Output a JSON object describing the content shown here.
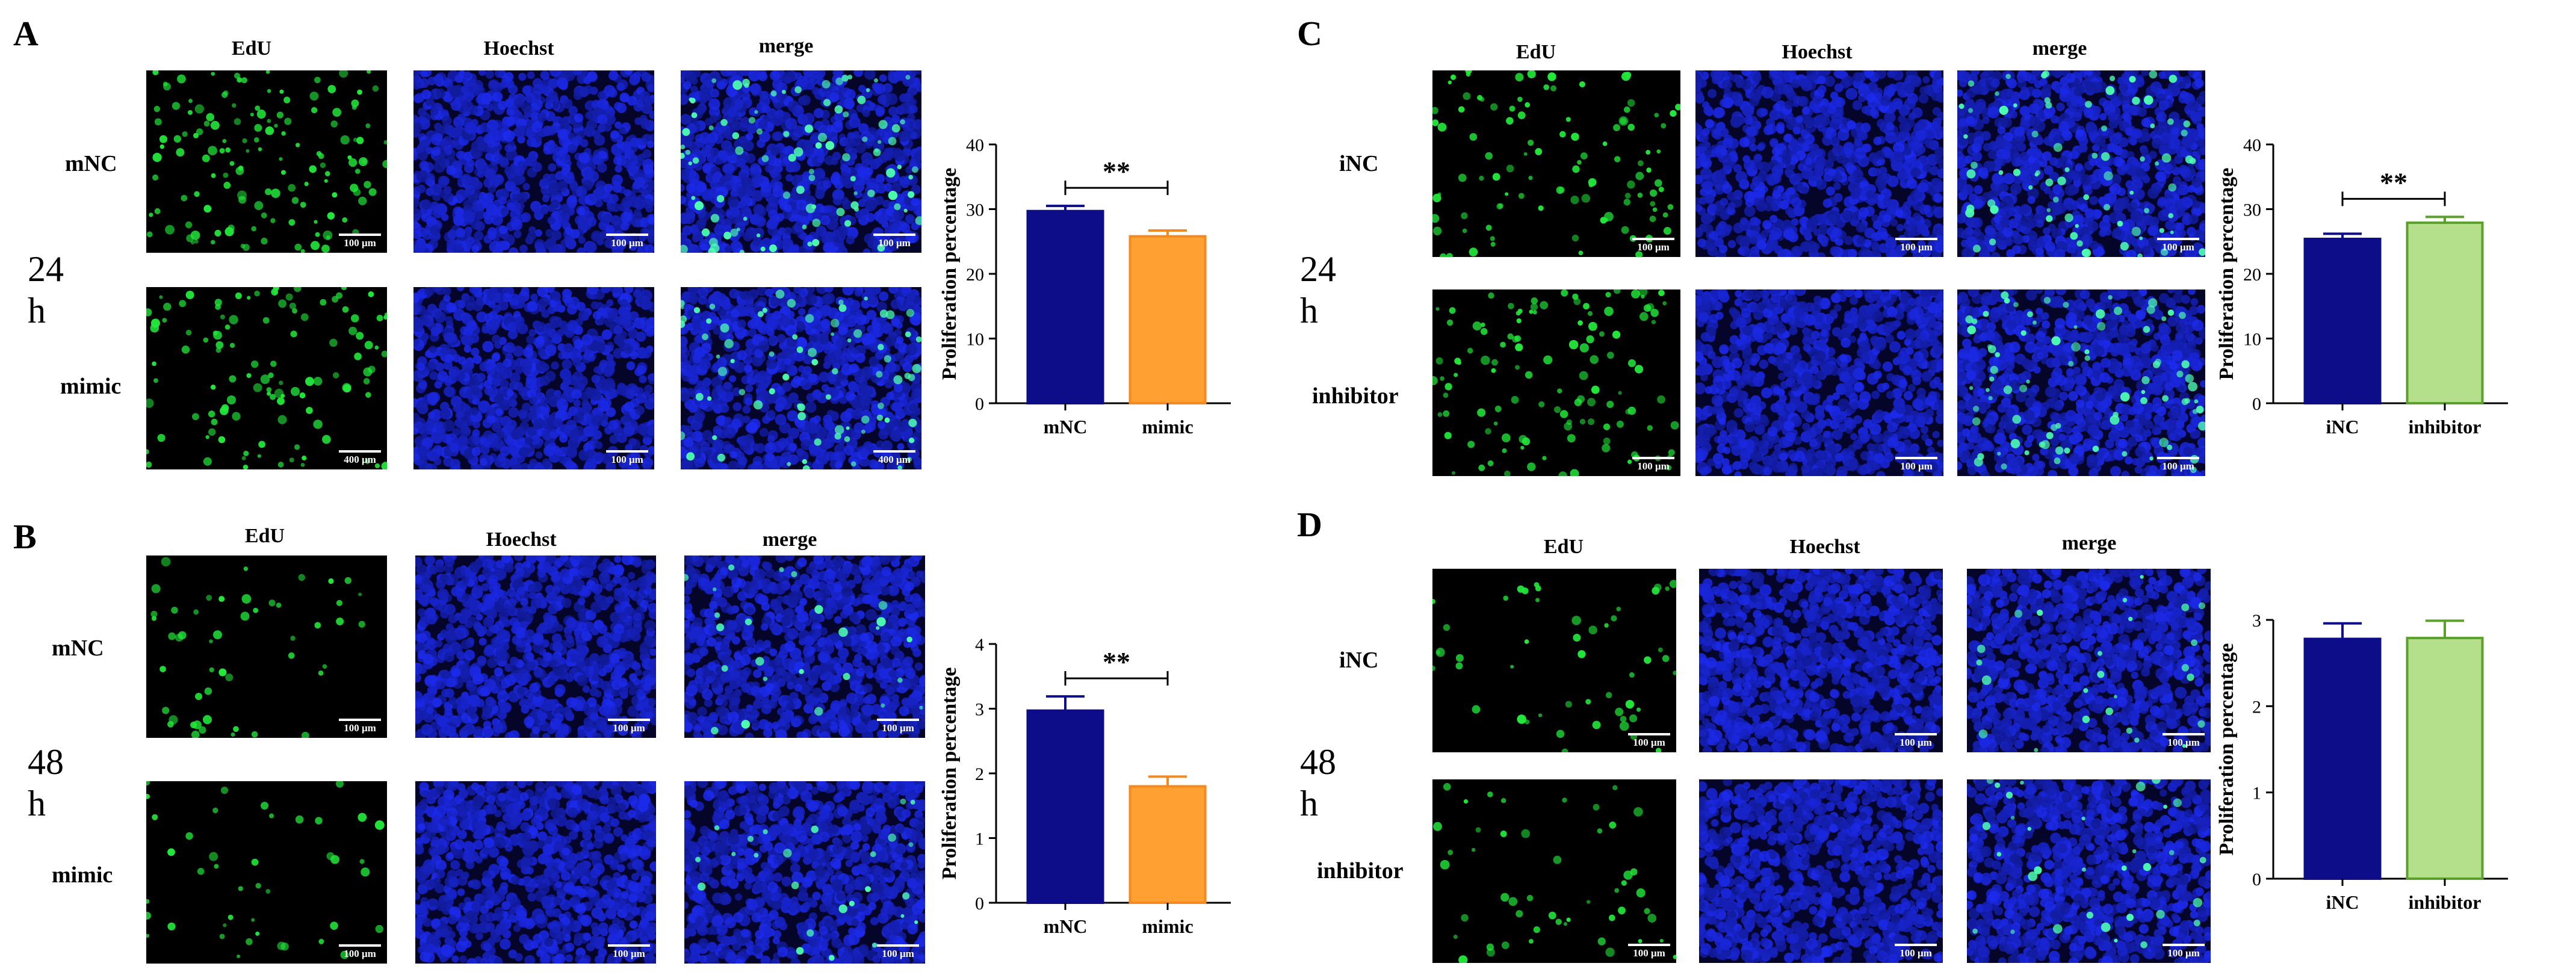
{
  "panels": [
    {
      "letter": "A",
      "columns": [
        "EdU",
        "Hoechst",
        "merge"
      ],
      "rows": [
        "mNC",
        "mimic"
      ],
      "time": "24 h",
      "scale_labels": [
        [
          "100 μm",
          "100 μm",
          "100 μm"
        ],
        [
          "400 μm",
          "100 μm",
          "400 μm"
        ]
      ],
      "edu_density": [
        [
          1.0,
          0.75
        ],
        [
          0.8,
          0.6
        ]
      ],
      "colors": {
        "green": "#22e83a",
        "merge_dot": "#4dffb0",
        "blue": "#1a2bd6"
      }
    },
    {
      "letter": "B",
      "columns": [
        "EdU",
        "Hoechst",
        "merge"
      ],
      "rows": [
        "mNC",
        "mimic"
      ],
      "time": "48 h",
      "scale_labels": [
        [
          "100 μm",
          "100 μm",
          "100 μm"
        ],
        [
          "100 μm",
          "100 μm",
          "100 μm"
        ]
      ],
      "edu_density": [
        [
          0.35,
          0.2
        ],
        [
          0.3,
          0.2
        ]
      ],
      "colors": {
        "green": "#22e83a",
        "merge_dot": "#4dffb0",
        "blue": "#1a2bd6"
      }
    },
    {
      "letter": "C",
      "columns": [
        "EdU",
        "Hoechst",
        "merge"
      ],
      "rows": [
        "iNC",
        "inhibitor"
      ],
      "time": "24 h",
      "scale_labels": [
        [
          "100 μm",
          "100 μm",
          "100 μm"
        ],
        [
          "100 μm",
          "100 μm",
          "100 μm"
        ]
      ],
      "edu_density": [
        [
          0.75,
          0.6
        ],
        [
          0.85,
          0.65
        ]
      ],
      "colors": {
        "green": "#22e83a",
        "merge_dot": "#4dffb0",
        "blue": "#1a2bd6"
      }
    },
    {
      "letter": "D",
      "columns": [
        "EdU",
        "Hoechst",
        "merge"
      ],
      "rows": [
        "iNC",
        "inhibitor"
      ],
      "time": "48 h",
      "scale_labels": [
        [
          "100 μm",
          "100 μm",
          "100 μm"
        ],
        [
          "100 μm",
          "100 μm",
          "100 μm"
        ]
      ],
      "edu_density": [
        [
          0.35,
          0.2
        ],
        [
          0.35,
          0.25
        ]
      ],
      "colors": {
        "green": "#22e83a",
        "merge_dot": "#4dffb0",
        "blue": "#1a2bd6"
      }
    }
  ],
  "chart_data": [
    {
      "type": "bar",
      "panel": "A",
      "categories": [
        "mNC",
        "mimic"
      ],
      "values": [
        29.7,
        25.8
      ],
      "errors": [
        0.8,
        0.9
      ],
      "colors": [
        "#0d0d8a",
        "#ffa033"
      ],
      "edge_colors": [
        "#0d0d8a",
        "#f48a1f"
      ],
      "ylabel": "Proliferation percentage",
      "ylim": [
        0,
        40
      ],
      "yticks": [
        "0",
        "10",
        "20",
        "30",
        "40"
      ],
      "significance": "**"
    },
    {
      "type": "bar",
      "panel": "B",
      "categories": [
        "mNC",
        "mimic"
      ],
      "values": [
        2.97,
        1.8
      ],
      "errors": [
        0.22,
        0.15
      ],
      "colors": [
        "#0d0d8a",
        "#ffa033"
      ],
      "edge_colors": [
        "#0d0d8a",
        "#f48a1f"
      ],
      "ylabel": "Proliferation percentage",
      "ylim": [
        0,
        4
      ],
      "yticks": [
        "0",
        "1",
        "2",
        "3",
        "4"
      ],
      "significance": "**"
    },
    {
      "type": "bar",
      "panel": "C",
      "categories": [
        "iNC",
        "inhibitor"
      ],
      "values": [
        25.4,
        27.9
      ],
      "errors": [
        0.8,
        0.9
      ],
      "colors": [
        "#0d0d8a",
        "#b4e08c"
      ],
      "edge_colors": [
        "#0d0d8a",
        "#5aa02a"
      ],
      "ylabel": "Proliferation percentage",
      "ylim": [
        0,
        40
      ],
      "yticks": [
        "0",
        "10",
        "20",
        "30",
        "40"
      ],
      "significance": "**"
    },
    {
      "type": "bar",
      "panel": "D",
      "categories": [
        "iNC",
        "inhibitor"
      ],
      "values": [
        2.78,
        2.79
      ],
      "errors": [
        0.18,
        0.2
      ],
      "colors": [
        "#0d0d8a",
        "#b4e08c"
      ],
      "edge_colors": [
        "#0d0d8a",
        "#5aa02a"
      ],
      "ylabel": "Proliferation percentage",
      "ylim": [
        0,
        3
      ],
      "yticks": [
        "0",
        "1",
        "2",
        "3"
      ],
      "significance": ""
    }
  ]
}
